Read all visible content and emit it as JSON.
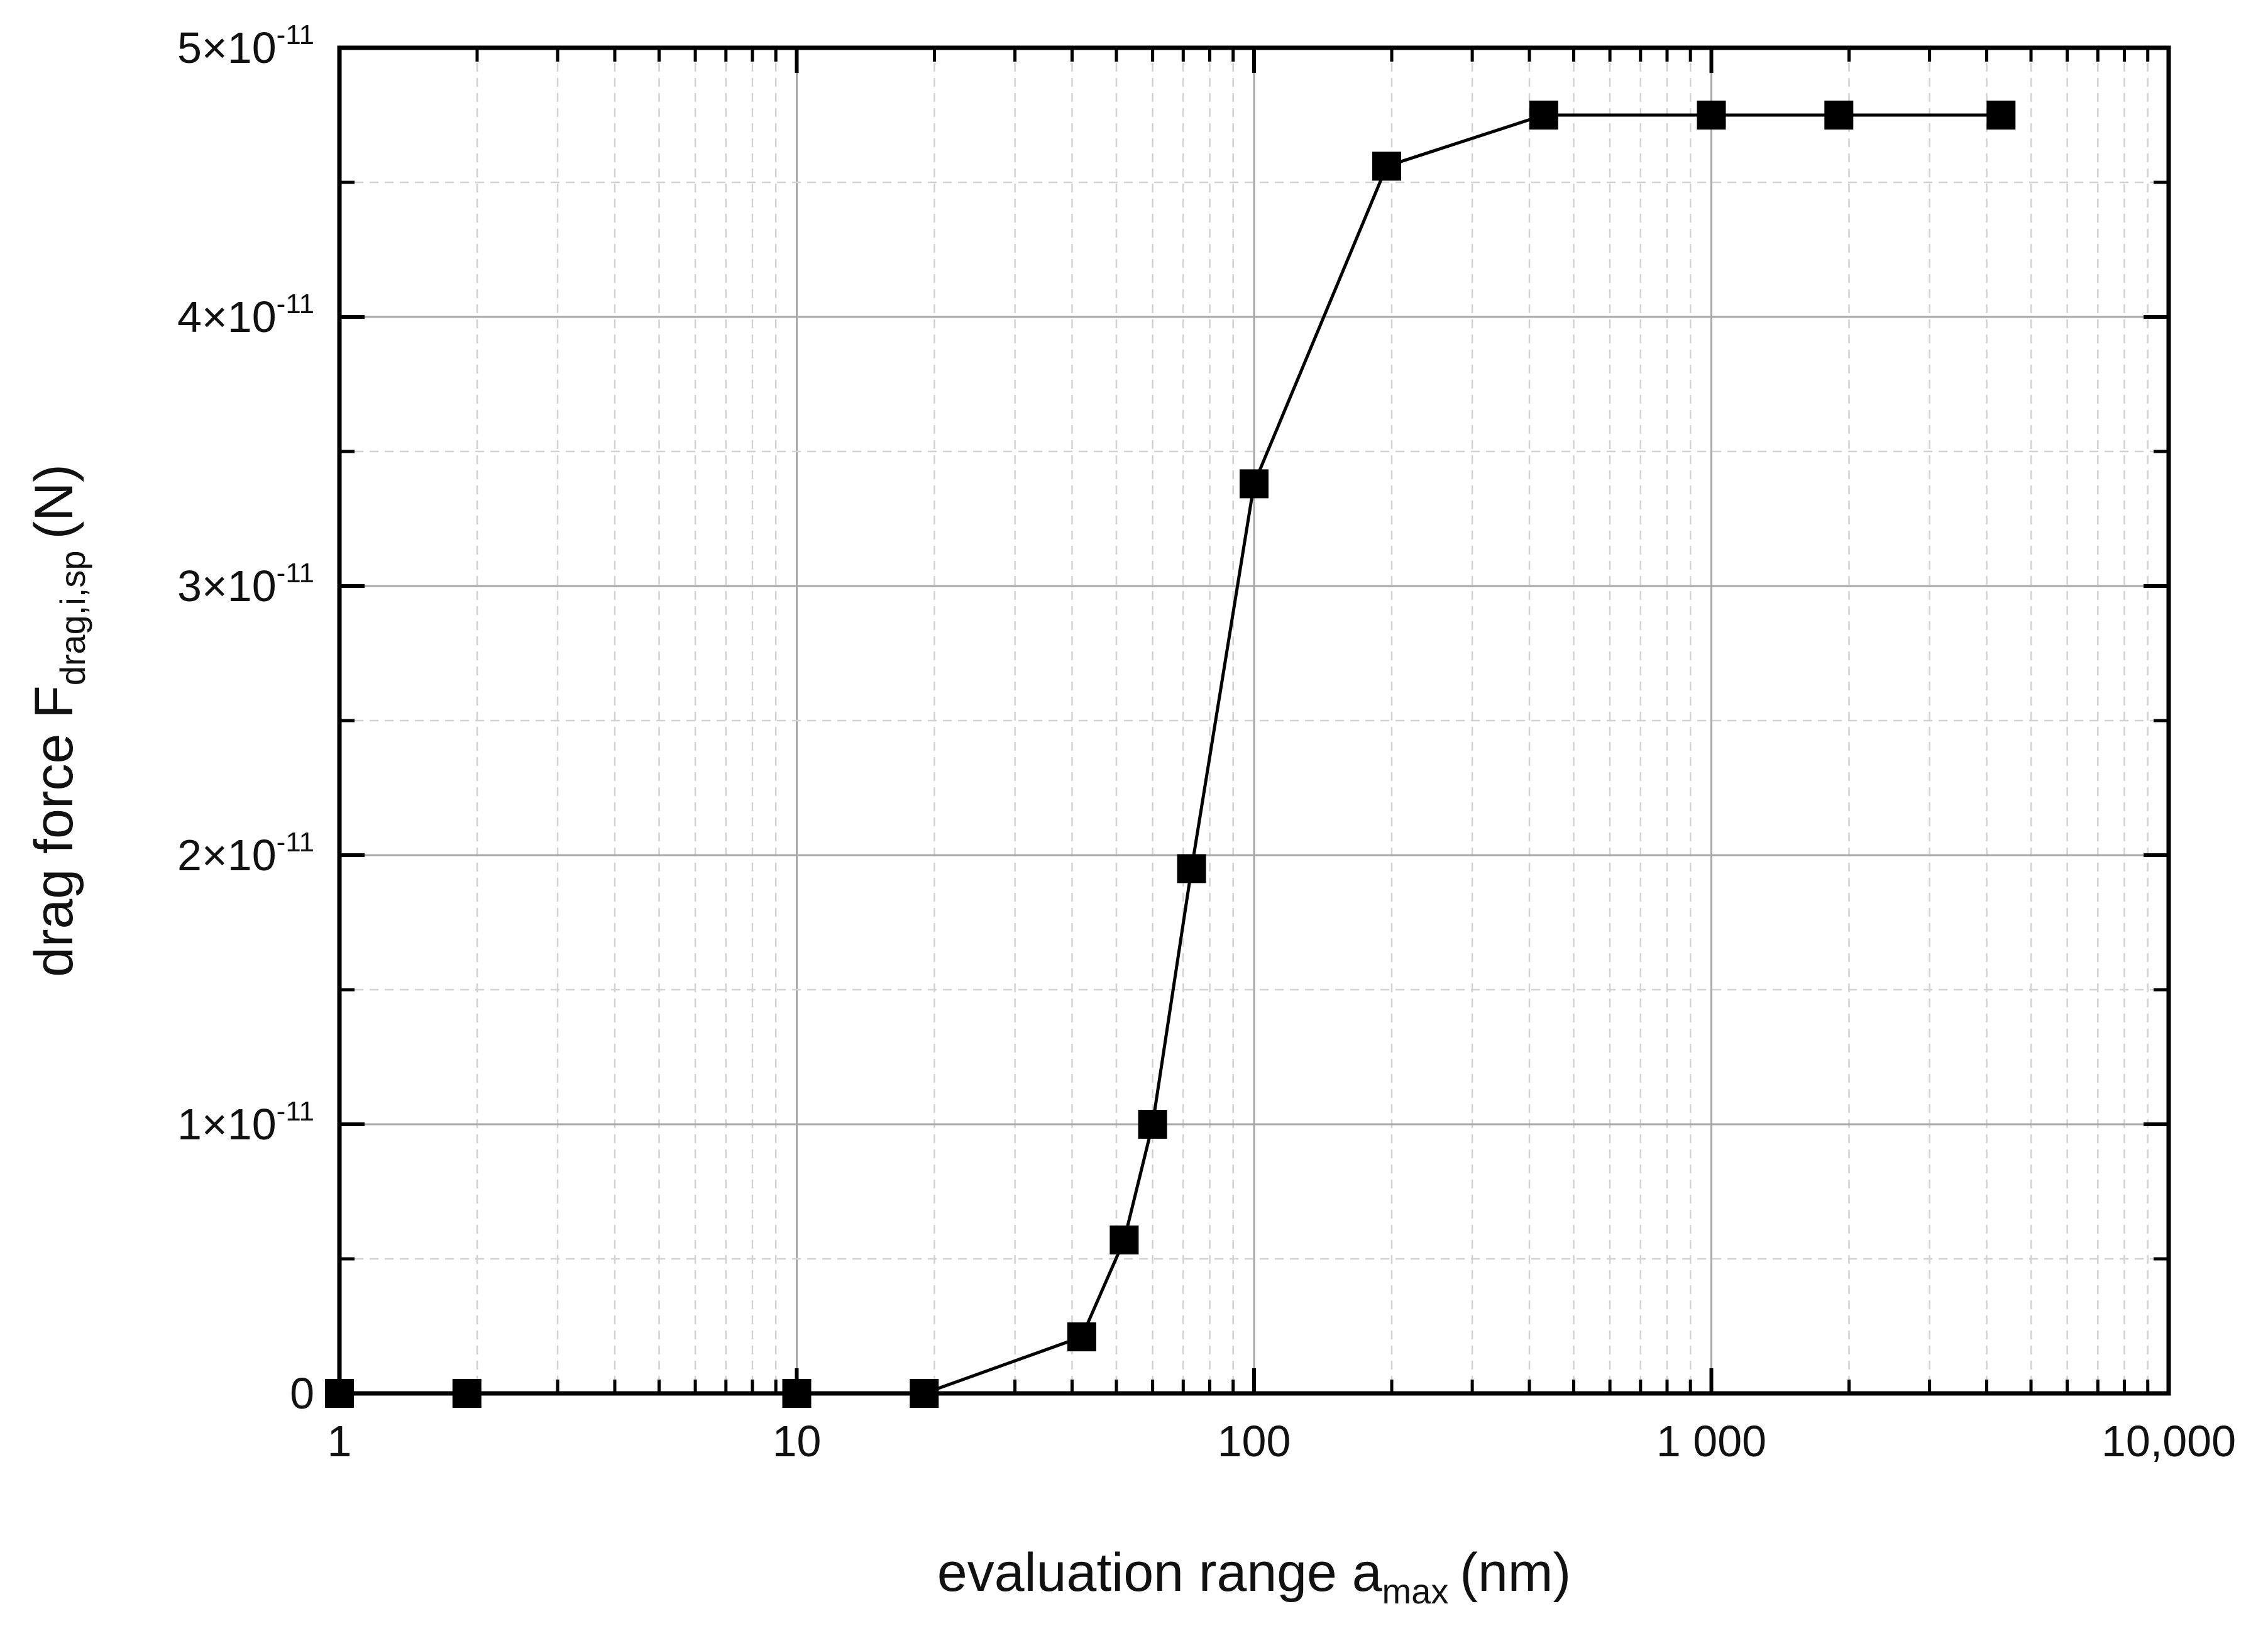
{
  "chart_data": {
    "type": "line",
    "title": "",
    "xlabel": {
      "main": "evaluation range a",
      "sub": "max",
      "unit": "(nm)"
    },
    "ylabel": {
      "main": "drag force F",
      "sub": "drag,i,sp",
      "unit": "(N)"
    },
    "x_scale": "log",
    "xlim": [
      1,
      10000
    ],
    "ylim": [
      0,
      5e-11
    ],
    "x_ticks": [
      {
        "value": 1,
        "label": "1"
      },
      {
        "value": 10,
        "label": "10"
      },
      {
        "value": 100,
        "label": "100"
      },
      {
        "value": 1000,
        "label": "1 000"
      },
      {
        "value": 10000,
        "label": "10,000"
      }
    ],
    "y_ticks": [
      {
        "value": 0,
        "label": "0",
        "exp": ""
      },
      {
        "value": 1e-11,
        "label": "1×10",
        "exp": "-11"
      },
      {
        "value": 2e-11,
        "label": "2×10",
        "exp": "-11"
      },
      {
        "value": 3e-11,
        "label": "3×10",
        "exp": "-11"
      },
      {
        "value": 4e-11,
        "label": "4×10",
        "exp": "-11"
      },
      {
        "value": 5e-11,
        "label": "5×10",
        "exp": "-11"
      }
    ],
    "grid": true,
    "series": [
      {
        "name": "F_drag,i,sp",
        "color": "#000000",
        "marker": "square",
        "x": [
          1,
          1.9,
          10,
          19,
          42,
          52,
          60,
          73,
          100,
          195,
          430,
          1000,
          1900,
          4300
        ],
        "y": [
          0,
          0,
          0,
          0,
          2.1e-12,
          5.7e-12,
          1e-11,
          1.95e-11,
          3.38e-11,
          4.56e-11,
          4.75e-11,
          4.75e-11,
          4.75e-11,
          4.75e-11
        ]
      }
    ]
  }
}
